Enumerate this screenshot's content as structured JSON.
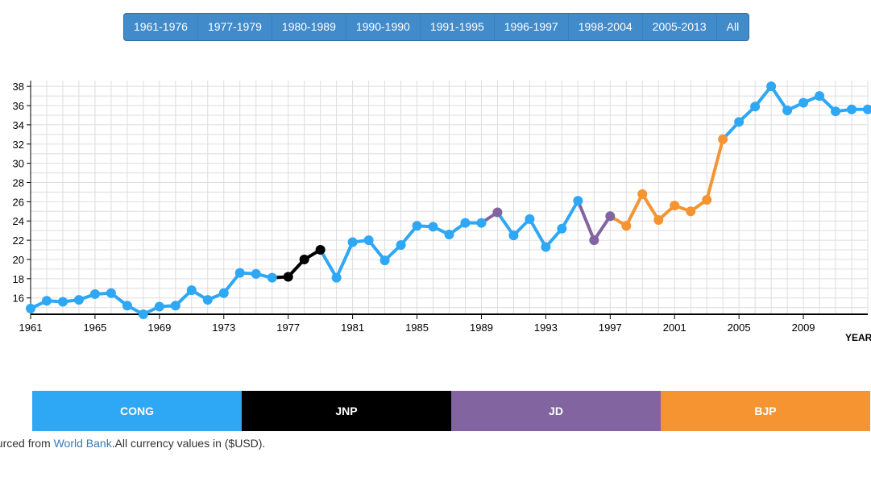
{
  "filters": [
    {
      "label": "1961-1976"
    },
    {
      "label": "1977-1979"
    },
    {
      "label": "1980-1989"
    },
    {
      "label": "1990-1990"
    },
    {
      "label": "1991-1995"
    },
    {
      "label": "1996-1997"
    },
    {
      "label": "1998-2004"
    },
    {
      "label": "2005-2013"
    },
    {
      "label": "All"
    }
  ],
  "footer": {
    "prefix": "ourced from ",
    "link_text": "World Bank",
    "suffix": ".All currency values in ($USD)."
  },
  "chart_data": {
    "type": "line",
    "xlabel": "YEAR",
    "ylabel": "",
    "xlim": [
      1961,
      2013
    ],
    "ylim": [
      14.3,
      38.6
    ],
    "y_ticks": [
      16,
      18,
      20,
      22,
      24,
      26,
      28,
      30,
      32,
      34,
      36,
      38
    ],
    "x_ticks": [
      1961,
      1965,
      1969,
      1973,
      1977,
      1981,
      1985,
      1989,
      1993,
      1997,
      2001,
      2005,
      2009
    ],
    "grid": true,
    "colors": {
      "CONG": "#2ea7f5",
      "JNP": "#000000",
      "JD": "#8264a1",
      "BJP": "#f59431"
    },
    "parties": [
      {
        "name": "CONG",
        "color": "#2ea7f5"
      },
      {
        "name": "JNP",
        "color": "#000000"
      },
      {
        "name": "JD",
        "color": "#8264a1"
      },
      {
        "name": "BJP",
        "color": "#f59431"
      }
    ],
    "points": [
      {
        "x": 1961,
        "y": 14.9,
        "party": "CONG"
      },
      {
        "x": 1962,
        "y": 15.7,
        "party": "CONG"
      },
      {
        "x": 1963,
        "y": 15.6,
        "party": "CONG"
      },
      {
        "x": 1964,
        "y": 15.8,
        "party": "CONG"
      },
      {
        "x": 1965,
        "y": 16.4,
        "party": "CONG"
      },
      {
        "x": 1966,
        "y": 16.5,
        "party": "CONG"
      },
      {
        "x": 1967,
        "y": 15.2,
        "party": "CONG"
      },
      {
        "x": 1968,
        "y": 14.3,
        "party": "CONG"
      },
      {
        "x": 1969,
        "y": 15.1,
        "party": "CONG"
      },
      {
        "x": 1970,
        "y": 15.2,
        "party": "CONG"
      },
      {
        "x": 1971,
        "y": 16.8,
        "party": "CONG"
      },
      {
        "x": 1972,
        "y": 15.8,
        "party": "CONG"
      },
      {
        "x": 1973,
        "y": 16.5,
        "party": "CONG"
      },
      {
        "x": 1974,
        "y": 18.6,
        "party": "CONG"
      },
      {
        "x": 1975,
        "y": 18.5,
        "party": "CONG"
      },
      {
        "x": 1976,
        "y": 18.1,
        "party": "CONG"
      },
      {
        "x": 1977,
        "y": 18.2,
        "party": "JNP"
      },
      {
        "x": 1978,
        "y": 20.0,
        "party": "JNP"
      },
      {
        "x": 1979,
        "y": 21.0,
        "party": "JNP"
      },
      {
        "x": 1980,
        "y": 18.1,
        "party": "CONG"
      },
      {
        "x": 1981,
        "y": 21.8,
        "party": "CONG"
      },
      {
        "x": 1982,
        "y": 22.0,
        "party": "CONG"
      },
      {
        "x": 1983,
        "y": 19.9,
        "party": "CONG"
      },
      {
        "x": 1984,
        "y": 21.5,
        "party": "CONG"
      },
      {
        "x": 1985,
        "y": 23.5,
        "party": "CONG"
      },
      {
        "x": 1986,
        "y": 23.4,
        "party": "CONG"
      },
      {
        "x": 1987,
        "y": 22.6,
        "party": "CONG"
      },
      {
        "x": 1988,
        "y": 23.8,
        "party": "CONG"
      },
      {
        "x": 1989,
        "y": 23.8,
        "party": "CONG"
      },
      {
        "x": 1990,
        "y": 24.9,
        "party": "JD"
      },
      {
        "x": 1991,
        "y": 22.5,
        "party": "CONG"
      },
      {
        "x": 1992,
        "y": 24.2,
        "party": "CONG"
      },
      {
        "x": 1993,
        "y": 21.3,
        "party": "CONG"
      },
      {
        "x": 1994,
        "y": 23.2,
        "party": "CONG"
      },
      {
        "x": 1995,
        "y": 26.1,
        "party": "CONG"
      },
      {
        "x": 1996,
        "y": 22.0,
        "party": "JD"
      },
      {
        "x": 1997,
        "y": 24.5,
        "party": "JD"
      },
      {
        "x": 1998,
        "y": 23.5,
        "party": "BJP"
      },
      {
        "x": 1999,
        "y": 26.8,
        "party": "BJP"
      },
      {
        "x": 2000,
        "y": 24.1,
        "party": "BJP"
      },
      {
        "x": 2001,
        "y": 25.6,
        "party": "BJP"
      },
      {
        "x": 2002,
        "y": 25.0,
        "party": "BJP"
      },
      {
        "x": 2003,
        "y": 26.2,
        "party": "BJP"
      },
      {
        "x": 2004,
        "y": 32.5,
        "party": "BJP"
      },
      {
        "x": 2005,
        "y": 34.3,
        "party": "CONG"
      },
      {
        "x": 2006,
        "y": 35.9,
        "party": "CONG"
      },
      {
        "x": 2007,
        "y": 38.0,
        "party": "CONG"
      },
      {
        "x": 2008,
        "y": 35.5,
        "party": "CONG"
      },
      {
        "x": 2009,
        "y": 36.3,
        "party": "CONG"
      },
      {
        "x": 2010,
        "y": 37.0,
        "party": "CONG"
      },
      {
        "x": 2011,
        "y": 35.4,
        "party": "CONG"
      },
      {
        "x": 2012,
        "y": 35.6,
        "party": "CONG"
      },
      {
        "x": 2013,
        "y": 35.6,
        "party": "CONG"
      }
    ]
  }
}
